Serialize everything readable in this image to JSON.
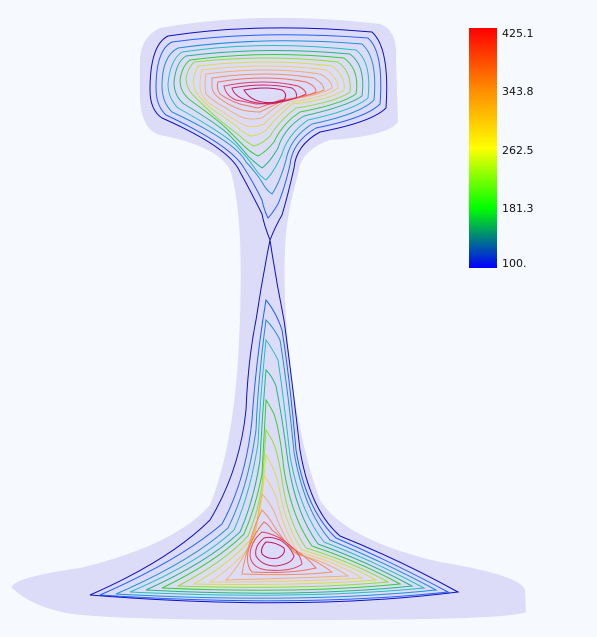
{
  "colorbar": {
    "max_label": "425.1",
    "t1_label": "343.8",
    "t2_label": "262.5",
    "t3_label": "181.3",
    "min_label": "100.",
    "range": [
      100,
      425.1
    ],
    "gradient_colors": [
      "#ff0000",
      "#ff8800",
      "#ffff00",
      "#00ff00",
      "#0000ff"
    ]
  },
  "colors": {
    "background": "#f6faff",
    "section_fill": "#dcdcf8"
  }
}
